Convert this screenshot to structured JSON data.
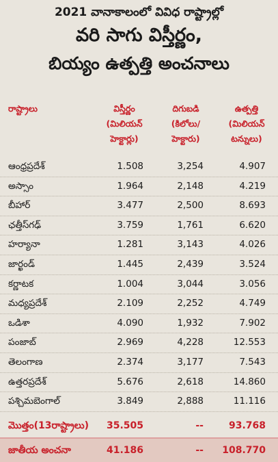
{
  "title": {
    "line1": "2021 వానాకాలంలో వివిధ రాష్ట్రాల్లో",
    "line2": "వరి సాగు విస్తీర్ణం,",
    "line3": "బియ్యం ఉత్పత్తి అంచనాలు"
  },
  "columns": {
    "state": "రాష్ట్రాలు",
    "area": [
      "విస్తీర్ణం",
      "(మిలియన్",
      "హెక్టార్లు)"
    ],
    "yield": [
      "దిగుబడి",
      "(కిలోలు/",
      "హెక్టారు)"
    ],
    "production": [
      "ఉత్పత్తి",
      "(మిలియన్",
      "టన్నులు)"
    ]
  },
  "rows": [
    {
      "state": "ఆంధ్రప్రదేశ్",
      "area": "1.508",
      "yield": "3,254",
      "production": "4.907"
    },
    {
      "state": "అస్సాం",
      "area": "1.964",
      "yield": "2,148",
      "production": "4.219"
    },
    {
      "state": "బీహార్",
      "area": "3.477",
      "yield": "2,500",
      "production": "8.693"
    },
    {
      "state": "ఛత్తీస్‌గఢ్",
      "area": "3.759",
      "yield": "1,761",
      "production": "6.620"
    },
    {
      "state": "హర్యానా",
      "area": "1.281",
      "yield": "3,143",
      "production": "4.026"
    },
    {
      "state": "జార్ఖండ్",
      "area": "1.445",
      "yield": "2,439",
      "production": "3.524"
    },
    {
      "state": "కర్ణాటక",
      "area": "1.004",
      "yield": "3,044",
      "production": "3.056"
    },
    {
      "state": "మధ్యప్రదేశ్",
      "area": "2.109",
      "yield": "2,252",
      "production": "4.749"
    },
    {
      "state": "ఒడిశా",
      "area": "4.090",
      "yield": "1,932",
      "production": "7.902"
    },
    {
      "state": "పంజాబ్",
      "area": "2.969",
      "yield": "4,228",
      "production": "12.553"
    },
    {
      "state": "తెలంగాణ",
      "area": "2.374",
      "yield": "3,177",
      "production": "7.543"
    },
    {
      "state": "ఉత్తరప్రదేశ్",
      "area": "5.676",
      "yield": "2,618",
      "production": "14.860"
    },
    {
      "state": "పశ్చిమబెంగాల్",
      "area": "3.849",
      "yield": "2,888",
      "production": "11.116"
    }
  ],
  "total": {
    "state": "మొత్తం(13రాష్ట్రాలు)",
    "area": "35.505",
    "yield": "--",
    "production": "93.768"
  },
  "national": {
    "state": "జాతీయ అంచనా",
    "area": "41.186",
    "yield": "--",
    "production": "108.770"
  },
  "colors": {
    "accent": "#c8202a",
    "background": "#e9e5dd",
    "national_band": "#e3c9c1"
  }
}
